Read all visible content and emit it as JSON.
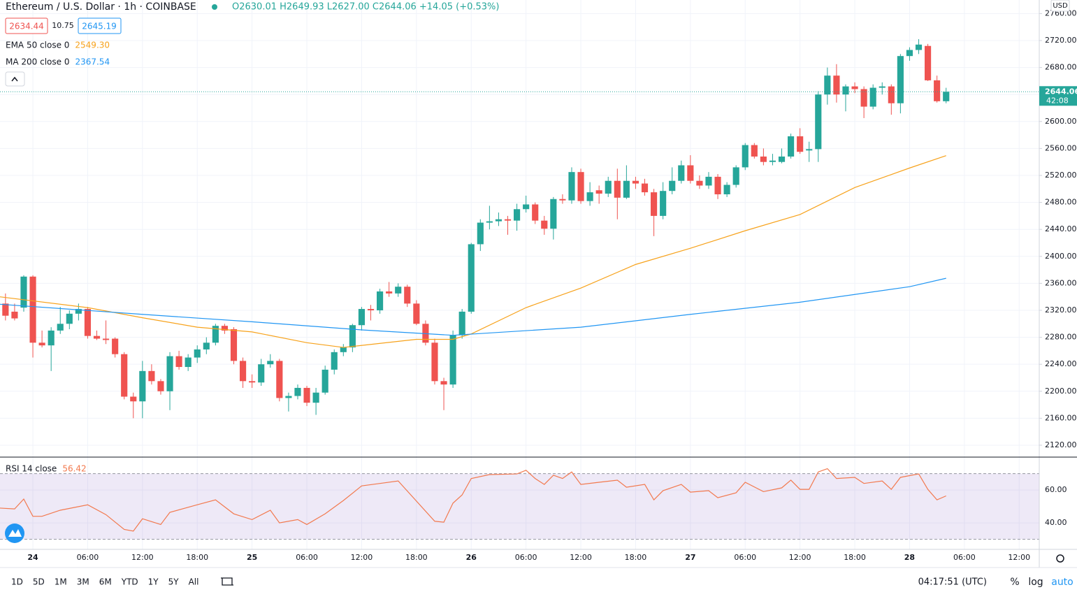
{
  "header": {
    "symbol": "Ethereum / U.S. Dollar · 1h · COINBASE",
    "ohlc": "O2630.01 H2649.93 L2627.00 C2644.06 +14.05 (+0.53%)",
    "bid": "2634.44",
    "spread": "10.75",
    "ask": "2645.19"
  },
  "chart_data": [
    {
      "type": "candlestick",
      "currency": "USD",
      "up_color": "#26a69a",
      "down_color": "#ef5350",
      "x": [
        -3,
        -2,
        -1,
        0,
        1,
        2,
        3,
        4,
        5,
        6,
        7,
        8,
        9,
        10,
        11,
        12,
        13,
        14,
        15,
        16,
        17,
        18,
        19,
        20,
        21,
        22,
        23,
        24,
        25,
        26,
        27,
        28,
        29,
        30,
        31,
        32,
        33,
        34,
        35,
        36,
        37,
        38,
        39,
        40,
        41,
        42,
        43,
        44,
        45,
        46,
        47,
        48,
        49,
        50,
        51,
        52,
        53,
        54,
        55,
        56,
        57,
        58,
        59,
        60,
        61,
        62,
        63,
        64,
        65,
        66,
        67,
        68,
        69,
        70,
        71,
        72,
        73,
        74,
        75,
        76,
        77,
        78,
        79,
        80,
        81,
        82,
        83,
        84,
        85,
        86,
        87,
        88,
        89,
        90,
        91,
        92,
        93,
        94,
        95,
        96,
        97,
        98,
        99,
        100
      ],
      "open": [
        2330,
        2318,
        2324,
        2370,
        2272,
        2268,
        2290,
        2300,
        2315,
        2322,
        2282,
        2278,
        2278,
        2255,
        2192,
        2185,
        2230,
        2215,
        2200,
        2252,
        2236,
        2250,
        2262,
        2272,
        2297,
        2292,
        2245,
        2215,
        2213,
        2240,
        2245,
        2190,
        2193,
        2205,
        2183,
        2198,
        2232,
        2258,
        2265,
        2298,
        2322,
        2320,
        2348,
        2345,
        2355,
        2330,
        2300,
        2272,
        2215,
        2210,
        2283,
        2318,
        2418,
        2450,
        2452,
        2455,
        2453,
        2470,
        2477,
        2453,
        2441,
        2485,
        2483,
        2525,
        2482,
        2498,
        2493,
        2512,
        2487,
        2512,
        2508,
        2495,
        2460,
        2497,
        2512,
        2535,
        2512,
        2505,
        2518,
        2492,
        2506,
        2532,
        2565,
        2548,
        2540,
        2540,
        2548,
        2578,
        2557,
        2559,
        2640,
        2668,
        2640,
        2652,
        2648,
        2622,
        2650,
        2652,
        2627,
        2697,
        2706,
        2712,
        2661,
        2630.01
      ],
      "high": [
        2345,
        2330,
        2372,
        2372,
        2290,
        2295,
        2325,
        2320,
        2330,
        2325,
        2290,
        2305,
        2280,
        2258,
        2198,
        2245,
        2240,
        2218,
        2258,
        2260,
        2255,
        2268,
        2280,
        2300,
        2300,
        2295,
        2250,
        2225,
        2248,
        2255,
        2248,
        2198,
        2210,
        2208,
        2205,
        2238,
        2262,
        2270,
        2300,
        2325,
        2328,
        2352,
        2362,
        2360,
        2358,
        2335,
        2305,
        2278,
        2220,
        2290,
        2322,
        2420,
        2455,
        2475,
        2465,
        2460,
        2478,
        2490,
        2480,
        2460,
        2488,
        2492,
        2532,
        2530,
        2510,
        2505,
        2518,
        2530,
        2535,
        2518,
        2515,
        2500,
        2510,
        2532,
        2542,
        2550,
        2520,
        2525,
        2522,
        2510,
        2535,
        2568,
        2568,
        2560,
        2552,
        2560,
        2582,
        2590,
        2570,
        2645,
        2680,
        2685,
        2655,
        2658,
        2652,
        2655,
        2658,
        2655,
        2700,
        2710,
        2722,
        2715,
        2668,
        2649.93
      ],
      "low": [
        2305,
        2305,
        2318,
        2250,
        2265,
        2230,
        2285,
        2292,
        2305,
        2278,
        2276,
        2270,
        2250,
        2188,
        2160,
        2160,
        2210,
        2195,
        2172,
        2232,
        2230,
        2242,
        2255,
        2268,
        2285,
        2240,
        2205,
        2205,
        2208,
        2235,
        2185,
        2170,
        2188,
        2178,
        2165,
        2195,
        2225,
        2252,
        2258,
        2290,
        2305,
        2315,
        2340,
        2340,
        2325,
        2298,
        2268,
        2210,
        2172,
        2205,
        2278,
        2315,
        2408,
        2440,
        2445,
        2432,
        2438,
        2465,
        2448,
        2432,
        2425,
        2478,
        2478,
        2478,
        2475,
        2478,
        2488,
        2455,
        2485,
        2500,
        2490,
        2430,
        2455,
        2492,
        2508,
        2508,
        2500,
        2500,
        2485,
        2488,
        2502,
        2528,
        2545,
        2535,
        2535,
        2538,
        2545,
        2552,
        2540,
        2540,
        2625,
        2628,
        2615,
        2642,
        2605,
        2618,
        2640,
        2610,
        2612,
        2690,
        2700,
        2660,
        2628,
        2627
      ],
      "close": [
        2312,
        2308,
        2370,
        2272,
        2268,
        2290,
        2300,
        2315,
        2322,
        2282,
        2278,
        2276,
        2255,
        2192,
        2185,
        2230,
        2215,
        2200,
        2252,
        2236,
        2250,
        2262,
        2272,
        2297,
        2290,
        2245,
        2215,
        2213,
        2240,
        2245,
        2190,
        2193,
        2205,
        2183,
        2198,
        2232,
        2258,
        2265,
        2298,
        2322,
        2320,
        2348,
        2345,
        2355,
        2330,
        2300,
        2272,
        2215,
        2210,
        2283,
        2318,
        2418,
        2450,
        2452,
        2455,
        2453,
        2470,
        2477,
        2453,
        2441,
        2485,
        2483,
        2525,
        2482,
        2495,
        2493,
        2512,
        2487,
        2512,
        2508,
        2495,
        2460,
        2497,
        2512,
        2535,
        2512,
        2505,
        2518,
        2492,
        2506,
        2532,
        2565,
        2548,
        2540,
        2542,
        2548,
        2578,
        2555,
        2559,
        2640,
        2668,
        2640,
        2652,
        2648,
        2622,
        2650,
        2652,
        2627,
        2697,
        2706,
        2714,
        2661,
        2630,
        2644.06
      ],
      "lines": [
        {
          "name": "EMA 50 close 0",
          "color": "#f7a21b",
          "value_label": "2549.30",
          "x": [
            -3.6,
            6,
            12,
            18,
            24,
            30,
            34,
            42,
            46,
            48,
            54,
            60,
            66,
            72,
            78,
            84,
            90,
            96,
            100
          ],
          "values": [
            2340,
            2324,
            2309,
            2295,
            2288,
            2272,
            2265,
            2277,
            2277,
            2285,
            2324,
            2353,
            2388,
            2412,
            2438,
            2462,
            2502,
            2531,
            2549.3
          ]
        },
        {
          "name": "MA 200 close 0",
          "color": "#2196f3",
          "value_label": "2367.54",
          "x": [
            -3.6,
            12,
            24,
            36,
            46,
            60,
            72,
            84,
            96,
            100
          ],
          "values": [
            2329,
            2314,
            2303,
            2291,
            2283,
            2295,
            2314,
            2332,
            2355,
            2367.54
          ]
        }
      ],
      "last_price_label": "2644.06",
      "countdown": "42:08",
      "xlim": [
        -3.6,
        110.2
      ],
      "xticks": [
        {
          "value": 0,
          "label": "24"
        },
        {
          "value": 6,
          "label": "06:00"
        },
        {
          "value": 12,
          "label": "12:00"
        },
        {
          "value": 18,
          "label": "18:00"
        },
        {
          "value": 24,
          "label": "25"
        },
        {
          "value": 30,
          "label": "06:00"
        },
        {
          "value": 36,
          "label": "12:00"
        },
        {
          "value": 42,
          "label": "18:00"
        },
        {
          "value": 48,
          "label": "26"
        },
        {
          "value": 54,
          "label": "06:00"
        },
        {
          "value": 60,
          "label": "12:00"
        },
        {
          "value": 66,
          "label": "18:00"
        },
        {
          "value": 72,
          "label": "27"
        },
        {
          "value": 78,
          "label": "06:00"
        },
        {
          "value": 84,
          "label": "12:00"
        },
        {
          "value": 90,
          "label": "18:00"
        },
        {
          "value": 96,
          "label": "28"
        },
        {
          "value": 102,
          "label": "06:00"
        },
        {
          "value": 108,
          "label": "12:00"
        }
      ],
      "ylim": [
        2103.4,
        2780.1
      ],
      "yticks": [
        {
          "value": 2120,
          "label": "2120.00"
        },
        {
          "value": 2160,
          "label": "2160.00"
        },
        {
          "value": 2200,
          "label": "2200.00"
        },
        {
          "value": 2240,
          "label": "2240.00"
        },
        {
          "value": 2280,
          "label": "2280.00"
        },
        {
          "value": 2320,
          "label": "2320.00"
        },
        {
          "value": 2360,
          "label": "2360.00"
        },
        {
          "value": 2400,
          "label": "2400.00"
        },
        {
          "value": 2440,
          "label": "2440.00"
        },
        {
          "value": 2480,
          "label": "2480.00"
        },
        {
          "value": 2520,
          "label": "2520.00"
        },
        {
          "value": 2560,
          "label": "2560.00"
        },
        {
          "value": 2600,
          "label": "2600.00"
        },
        {
          "value": 2640,
          "label": "2640.00"
        },
        {
          "value": 2680,
          "label": "2680.00"
        },
        {
          "value": 2720,
          "label": "2720.00"
        },
        {
          "value": 2760,
          "label": "2760.00"
        }
      ],
      "grid": true
    },
    {
      "type": "line",
      "title": "RSI 14 close",
      "value_label": "56.42",
      "color": "#f2794e",
      "band": [
        30,
        70
      ],
      "x": [
        -3.6,
        -2,
        -1,
        0,
        1,
        3,
        6,
        8,
        10,
        11,
        12,
        14,
        15,
        18,
        20,
        22,
        24,
        26,
        27,
        29,
        30,
        32,
        34,
        36,
        38,
        40,
        44,
        45,
        46,
        47,
        48,
        50,
        53,
        54,
        55,
        56,
        57,
        58,
        59,
        60,
        62,
        64,
        65,
        67,
        68,
        69,
        71,
        72,
        74,
        75,
        77,
        78,
        80,
        82,
        83,
        84,
        85,
        86,
        87,
        88,
        90,
        91,
        93,
        94,
        95,
        97,
        98,
        99,
        100
      ],
      "values": [
        49,
        48.5,
        54.5,
        44,
        44,
        47.7,
        51,
        45,
        36,
        35,
        42.5,
        39,
        46.4,
        51,
        54,
        45.5,
        42,
        47.7,
        40,
        42,
        39,
        45.5,
        53.6,
        62.5,
        64,
        65.5,
        41,
        40.4,
        52,
        57,
        67,
        69.4,
        69.8,
        72,
        67,
        63.4,
        69,
        67,
        71,
        63.4,
        64.7,
        66,
        61.7,
        63.4,
        54,
        59.6,
        63.4,
        58.7,
        59.6,
        55.3,
        58.3,
        64.7,
        59,
        61.3,
        66,
        60.4,
        60.4,
        71,
        73,
        67,
        67.7,
        64,
        65.5,
        60.4,
        67.7,
        69.8,
        60.4,
        54,
        56.42
      ],
      "ylim": [
        24.3,
        79.6
      ],
      "yticks": [
        {
          "value": 40,
          "label": "40.00"
        },
        {
          "value": 60,
          "label": "60.00"
        }
      ]
    }
  ],
  "toolbar": {
    "ranges": [
      "1D",
      "5D",
      "1M",
      "3M",
      "6M",
      "YTD",
      "1Y",
      "5Y",
      "All"
    ],
    "clock": "04:17:51 (UTC)",
    "percent": "%",
    "log": "log",
    "auto": "auto"
  }
}
